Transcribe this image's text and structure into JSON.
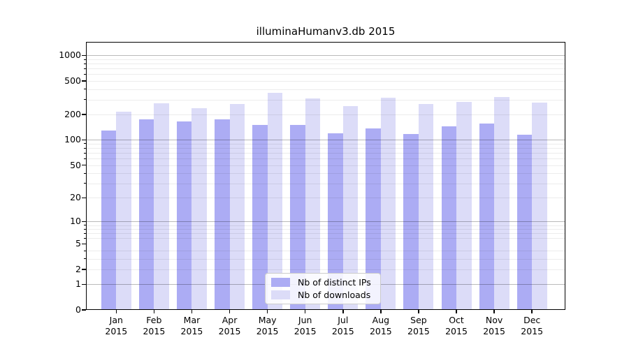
{
  "chart_data": {
    "type": "bar",
    "title": "illuminaHumanv3.db 2015",
    "categories": [
      "Jan",
      "Feb",
      "Mar",
      "Apr",
      "May",
      "Jun",
      "Jul",
      "Aug",
      "Sep",
      "Oct",
      "Nov",
      "Dec"
    ],
    "x_sublabel": "2015",
    "series": [
      {
        "name": "Nb of distinct IPs",
        "color": "#acacf4",
        "values": [
          130,
          175,
          165,
          175,
          152,
          150,
          120,
          137,
          118,
          146,
          156,
          116
        ]
      },
      {
        "name": "Nb of downloads",
        "color": "#dcdcf8",
        "values": [
          215,
          270,
          240,
          265,
          360,
          308,
          250,
          315,
          265,
          282,
          320,
          277
        ]
      }
    ],
    "yscale": "log1p",
    "ylim": [
      0,
      1450
    ],
    "ytick_values": [
      0,
      1,
      2,
      5,
      10,
      20,
      50,
      100,
      200,
      500,
      1000
    ],
    "ytick_labels": [
      "0",
      "1",
      "2",
      "5",
      "10",
      "20",
      "50",
      "100",
      "200",
      "500",
      "1000"
    ],
    "major_grid_values": [
      1,
      10,
      100,
      1000
    ],
    "minor_grid_values": [
      2,
      3,
      4,
      6,
      7,
      8,
      9,
      20,
      30,
      40,
      50,
      60,
      70,
      80,
      90,
      200,
      300,
      400,
      500,
      600,
      700,
      800,
      900
    ],
    "grid": true,
    "legend_position": "lower center"
  }
}
